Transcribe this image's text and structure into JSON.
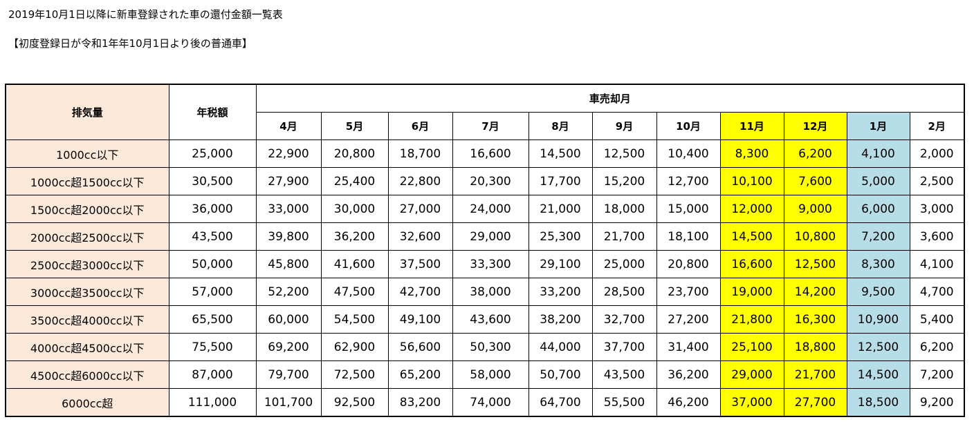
{
  "title": "2019年10月1日以降に新車登録された車の還付金額一覧表",
  "subtitle": "【初度登録日が令和1年年10月1日より後の普通車】",
  "colors": {
    "label_bg": "#fde9d9",
    "highlight_yellow": "#ffff00",
    "highlight_blue": "#b7dde8"
  },
  "table": {
    "header_displacement": "排気量",
    "header_annual_tax": "年税額",
    "header_sale_month": "車売却月",
    "months": [
      "4月",
      "5月",
      "6月",
      "7月",
      "8月",
      "9月",
      "10月",
      "11月",
      "12月",
      "1月",
      "2月"
    ],
    "month_highlight": [
      "",
      "",
      "",
      "",
      "",
      "",
      "",
      "yellow",
      "yellow",
      "blue",
      ""
    ],
    "rows": [
      {
        "displacement": "1000cc以下",
        "tax": "25,000",
        "values": [
          "22,900",
          "20,800",
          "18,700",
          "16,600",
          "14,500",
          "12,500",
          "10,400",
          "8,300",
          "6,200",
          "4,100",
          "2,000"
        ]
      },
      {
        "displacement": "1000cc超1500cc以下",
        "tax": "30,500",
        "values": [
          "27,900",
          "25,400",
          "22,800",
          "20,300",
          "17,700",
          "15,200",
          "12,700",
          "10,100",
          "7,600",
          "5,000",
          "2,500"
        ]
      },
      {
        "displacement": "1500cc超2000cc以下",
        "tax": "36,000",
        "values": [
          "33,000",
          "30,000",
          "27,000",
          "24,000",
          "21,000",
          "18,000",
          "15,000",
          "12,000",
          "9,000",
          "6,000",
          "3,000"
        ]
      },
      {
        "displacement": "2000cc超2500cc以下",
        "tax": "43,500",
        "values": [
          "39,800",
          "36,200",
          "32,600",
          "29,000",
          "25,300",
          "21,700",
          "18,100",
          "14,500",
          "10,800",
          "7,200",
          "3,600"
        ]
      },
      {
        "displacement": "2500cc超3000cc以下",
        "tax": "50,000",
        "values": [
          "45,800",
          "41,600",
          "37,500",
          "33,300",
          "29,100",
          "25,000",
          "20,800",
          "16,600",
          "12,500",
          "8,300",
          "4,100"
        ]
      },
      {
        "displacement": "3000cc超3500cc以下",
        "tax": "57,000",
        "values": [
          "52,200",
          "47,500",
          "42,700",
          "38,000",
          "33,200",
          "28,500",
          "23,700",
          "19,000",
          "14,200",
          "9,500",
          "4,700"
        ]
      },
      {
        "displacement": "3500cc超4000cc以下",
        "tax": "65,500",
        "values": [
          "60,000",
          "54,500",
          "49,100",
          "43,600",
          "38,200",
          "32,700",
          "27,200",
          "21,800",
          "16,300",
          "10,900",
          "5,400"
        ]
      },
      {
        "displacement": "4000cc超4500cc以下",
        "tax": "75,500",
        "values": [
          "69,200",
          "62,900",
          "56,600",
          "50,300",
          "44,000",
          "37,700",
          "31,400",
          "25,100",
          "18,800",
          "12,500",
          "6,200"
        ]
      },
      {
        "displacement": "4500cc超6000cc以下",
        "tax": "87,000",
        "values": [
          "79,700",
          "72,500",
          "65,200",
          "58,000",
          "50,700",
          "43,500",
          "36,200",
          "29,000",
          "21,700",
          "14,500",
          "7,200"
        ]
      },
      {
        "displacement": "6000cc超",
        "tax": "111,000",
        "values": [
          "101,700",
          "92,500",
          "83,200",
          "74,000",
          "64,700",
          "55,500",
          "46,200",
          "37,000",
          "27,700",
          "18,500",
          "9,200"
        ]
      }
    ]
  }
}
